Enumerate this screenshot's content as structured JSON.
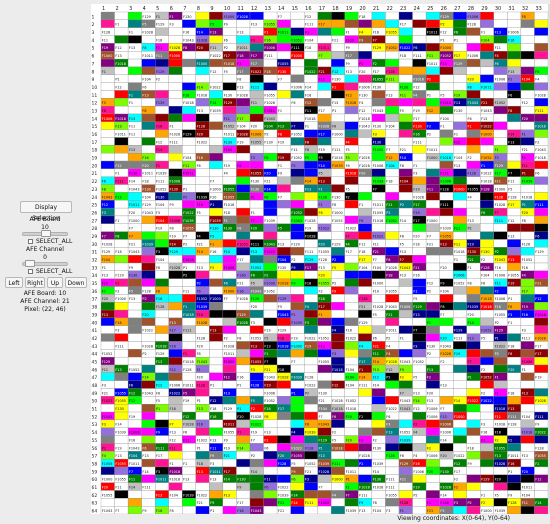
{
  "left_panel": {
    "display_selection_label": "Display Selection",
    "afe_board_label": "AFE Board",
    "afe_board_value": "10",
    "select_all_label_1": "SELECT_ALL",
    "afe_channel_label": "AFE Channel",
    "afe_channel_value": "0",
    "select_all_label_2": "SELECT_ALL",
    "nav": {
      "left": "Left",
      "right": "Right",
      "up": "Up",
      "down": "Down"
    },
    "info": {
      "board": "AFE Board: 10",
      "channel": "AFE Channel: 21",
      "pixel": "Pixel: (22, 46)"
    }
  },
  "grid": {
    "columns": [
      "1",
      "2",
      "3",
      "4",
      "5",
      "6",
      "7",
      "8",
      "9",
      "10",
      "11",
      "12",
      "13",
      "14",
      "15",
      "16",
      "17",
      "18",
      "19",
      "20",
      "21",
      "22",
      "23",
      "24",
      "25",
      "26",
      "27",
      "28",
      "29",
      "30",
      "31",
      "32",
      "33"
    ],
    "rows": [
      "1",
      "2",
      "3",
      "4",
      "5",
      "6",
      "7",
      "8",
      "9",
      "10",
      "11",
      "12",
      "13",
      "14",
      "15",
      "16",
      "17",
      "18",
      "19",
      "20",
      "21",
      "22",
      "23",
      "24",
      "25",
      "26",
      "27",
      "28",
      "29",
      "30",
      "31",
      "32",
      "33",
      "34",
      "35",
      "36",
      "37",
      "38",
      "39",
      "40",
      "41",
      "42",
      "43",
      "44",
      "45",
      "46",
      "47",
      "48",
      "49",
      "50",
      "51",
      "52",
      "53",
      "54",
      "55",
      "56",
      "57",
      "58",
      "59",
      "60",
      "61",
      "62",
      "63",
      "64"
    ],
    "palette": [
      "#ffffff",
      "#ff00ff",
      "#00ffff",
      "#ffff00",
      "#ff0000",
      "#0000ff",
      "#00ff00",
      "#ffa500",
      "#800080",
      "#008000",
      "#808080",
      "#a0522d",
      "#00008b",
      "#ff1493",
      "#008080",
      "#000000",
      "#c0c0c0",
      "#7cfc00",
      "#8b0000",
      "#9370db"
    ],
    "cell_labels": [
      "P1",
      "F1",
      "P2",
      "F11",
      "F12",
      "F21",
      "F14",
      "F111",
      "F128",
      "F8",
      "F16",
      "F129",
      "F5",
      "F1",
      "F13",
      "F13",
      "F18",
      "F19",
      "F2",
      "F17",
      "F6",
      "F7",
      "F20",
      "F4",
      "F130",
      "F3",
      "F104",
      "F1043",
      "F1028",
      "F1000",
      "F1006",
      "F9",
      "F1011",
      "F1022",
      "F1055",
      "F1018",
      "F1039",
      "F1052"
    ]
  },
  "status": {
    "viewing": "Viewing coordinates: X(0-64), Y(0-64)"
  }
}
